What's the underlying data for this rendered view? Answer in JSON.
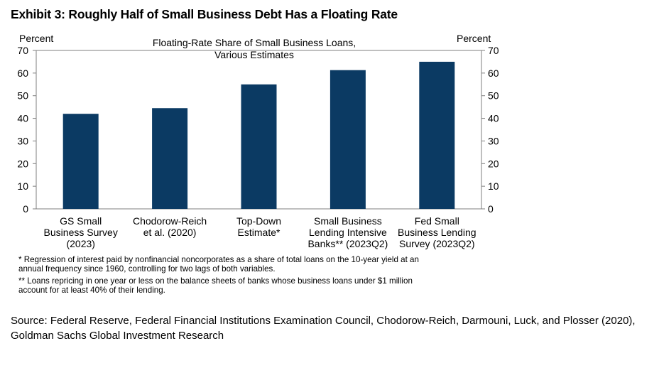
{
  "exhibit": {
    "title": "Exhibit 3: Roughly Half of Small Business Debt Has a Floating Rate"
  },
  "chart_data": {
    "type": "bar",
    "title_lines": [
      "Floating-Rate  Share of Small Business Loans,",
      "Various Estimates"
    ],
    "ylabel_left": "Percent",
    "ylabel_right": "Percent",
    "ylim": [
      0,
      70
    ],
    "yticks": [
      0,
      10,
      20,
      30,
      40,
      50,
      60,
      70
    ],
    "categories": [
      [
        "GS Small",
        "Business Survey",
        "(2023)"
      ],
      [
        "Chodorow-Reich",
        "et al. (2020)"
      ],
      [
        "Top-Down",
        "Estimate*"
      ],
      [
        "Small Business",
        "Lending Intensive",
        "Banks** (2023Q2)"
      ],
      [
        "Fed Small",
        "Business Lending",
        "Survey (2023Q2)"
      ]
    ],
    "values": [
      42,
      44.5,
      55,
      61.3,
      65
    ],
    "bar_color": "#0b3a63"
  },
  "footnotes": {
    "note1_line1": "* Regression of interest paid by nonfinancial noncorporates as a share of total loans on the 10-year yield at an",
    "note1_line2": "annual frequency since 1960, controlling for two lags of both variables.",
    "note2_line1": "** Loans repricing in one year or less on the balance sheets of banks whose business loans under $1 million",
    "note2_line2": "account for at least 40% of their lending."
  },
  "source": {
    "line1": "Source: Federal Reserve, Federal Financial Institutions Examination Council, Chodorow-Reich, Darmouni, Luck, and Plosser (2020),",
    "line2": "Goldman Sachs Global Investment Research"
  }
}
